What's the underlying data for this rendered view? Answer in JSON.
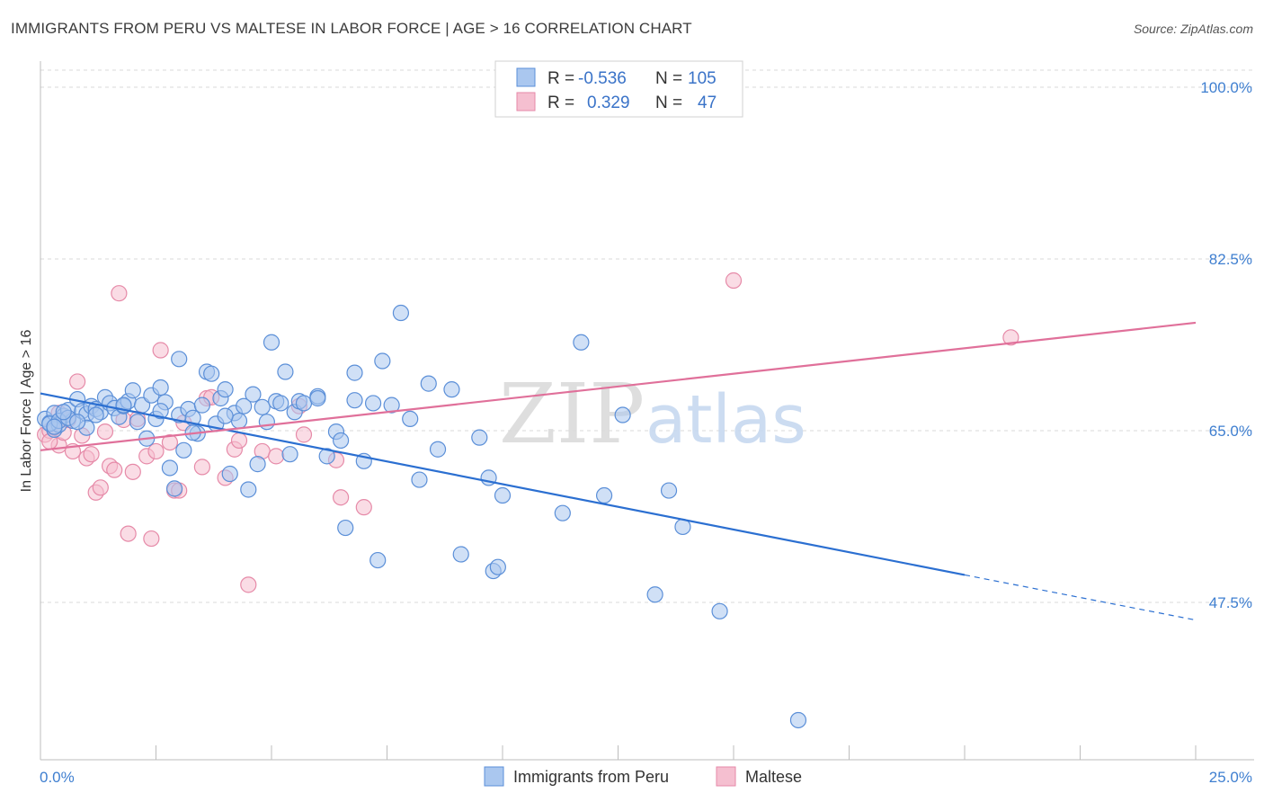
{
  "title": "IMMIGRANTS FROM PERU VS MALTESE IN LABOR FORCE | AGE > 16 CORRELATION CHART",
  "source": "Source: ZipAtlas.com",
  "colors": {
    "blue": "#5b8fd8",
    "blue_fill": "#aac7ef",
    "blue_line": "#2b6fd1",
    "pink": "#e68aa8",
    "pink_fill": "#f5bfd0",
    "pink_line": "#e0709a",
    "grid": "#d9d9d9",
    "tick_text": "#3f7fd0"
  },
  "legend": {
    "r_label": "R =",
    "n_label": "N =",
    "rows": [
      {
        "r": "-0.536",
        "n": "105"
      },
      {
        "r": "0.329",
        "n": "47"
      }
    ]
  },
  "watermark": {
    "zip": "ZIP",
    "atlas": "atlas"
  },
  "chart_data": {
    "type": "scatter",
    "xlabel": "",
    "ylabel": "In Labor Force | Age > 16",
    "xlim": [
      0,
      25
    ],
    "ylim": [
      36,
      101
    ],
    "x_tick_labels": [
      "0.0%",
      "25.0%"
    ],
    "y_ticks": [
      47.5,
      65.0,
      82.5,
      100.0
    ],
    "y_tick_labels": [
      "47.5%",
      "65.0%",
      "82.5%",
      "100.0%"
    ],
    "grid": true,
    "legend_position": "top-center",
    "series": [
      {
        "name": "Immigrants from Peru",
        "color": "#5b8fd8",
        "trend": {
          "x0": 0.0,
          "y0": 68.8,
          "x1": 20.0,
          "y1": 50.3,
          "dashed_to": 25.0,
          "dashed_y": 45.7
        },
        "points": [
          [
            0.1,
            66.2
          ],
          [
            0.2,
            65.8
          ],
          [
            0.3,
            65.1
          ],
          [
            0.3,
            66.8
          ],
          [
            0.4,
            65.6
          ],
          [
            0.5,
            66.5
          ],
          [
            0.6,
            67.1
          ],
          [
            0.7,
            66.0
          ],
          [
            0.8,
            68.2
          ],
          [
            0.9,
            67.0
          ],
          [
            1.0,
            66.7
          ],
          [
            1.0,
            65.3
          ],
          [
            1.1,
            67.5
          ],
          [
            1.2,
            67.2
          ],
          [
            1.3,
            66.9
          ],
          [
            1.4,
            68.4
          ],
          [
            1.5,
            67.8
          ],
          [
            1.6,
            67.3
          ],
          [
            1.7,
            66.4
          ],
          [
            1.8,
            67.5
          ],
          [
            1.9,
            68.0
          ],
          [
            2.0,
            69.1
          ],
          [
            2.1,
            65.9
          ],
          [
            2.2,
            67.6
          ],
          [
            2.3,
            64.2
          ],
          [
            2.4,
            68.6
          ],
          [
            2.5,
            66.2
          ],
          [
            2.6,
            69.4
          ],
          [
            2.7,
            67.9
          ],
          [
            2.8,
            61.2
          ],
          [
            2.9,
            59.1
          ],
          [
            3.0,
            66.6
          ],
          [
            3.0,
            72.3
          ],
          [
            3.1,
            63.0
          ],
          [
            3.2,
            67.2
          ],
          [
            3.3,
            66.3
          ],
          [
            3.4,
            64.7
          ],
          [
            3.5,
            67.6
          ],
          [
            3.6,
            71.0
          ],
          [
            3.7,
            70.8
          ],
          [
            3.8,
            65.7
          ],
          [
            3.9,
            68.3
          ],
          [
            4.0,
            69.2
          ],
          [
            4.1,
            60.6
          ],
          [
            4.2,
            66.8
          ],
          [
            4.3,
            66.0
          ],
          [
            4.4,
            67.5
          ],
          [
            4.5,
            59.0
          ],
          [
            4.6,
            68.7
          ],
          [
            4.7,
            61.6
          ],
          [
            4.8,
            67.4
          ],
          [
            4.9,
            65.9
          ],
          [
            5.0,
            74.0
          ],
          [
            5.1,
            68.0
          ],
          [
            5.2,
            67.8
          ],
          [
            5.3,
            71.0
          ],
          [
            5.4,
            62.6
          ],
          [
            5.5,
            66.9
          ],
          [
            5.6,
            68.0
          ],
          [
            5.7,
            67.8
          ],
          [
            6.0,
            68.5
          ],
          [
            6.0,
            68.3
          ],
          [
            6.2,
            62.4
          ],
          [
            6.4,
            64.9
          ],
          [
            6.5,
            64.0
          ],
          [
            6.6,
            55.1
          ],
          [
            6.8,
            68.1
          ],
          [
            6.8,
            70.9
          ],
          [
            7.0,
            61.9
          ],
          [
            7.2,
            67.8
          ],
          [
            7.3,
            51.8
          ],
          [
            7.4,
            72.1
          ],
          [
            7.6,
            67.6
          ],
          [
            7.8,
            77.0
          ],
          [
            8.0,
            66.2
          ],
          [
            8.2,
            60.0
          ],
          [
            8.4,
            69.8
          ],
          [
            8.6,
            63.1
          ],
          [
            8.9,
            69.2
          ],
          [
            9.1,
            52.4
          ],
          [
            9.5,
            64.3
          ],
          [
            9.7,
            60.2
          ],
          [
            9.8,
            50.7
          ],
          [
            9.9,
            51.1
          ],
          [
            10.0,
            58.4
          ],
          [
            11.3,
            56.6
          ],
          [
            11.7,
            74.0
          ],
          [
            12.2,
            58.4
          ],
          [
            12.6,
            66.6
          ],
          [
            13.3,
            48.3
          ],
          [
            13.6,
            58.9
          ],
          [
            13.9,
            55.2
          ],
          [
            14.7,
            46.6
          ],
          [
            16.4,
            35.5
          ],
          [
            0.2,
            65.7
          ],
          [
            0.4,
            66.0
          ],
          [
            0.6,
            66.3
          ],
          [
            0.8,
            65.9
          ],
          [
            1.2,
            66.6
          ],
          [
            1.8,
            67.6
          ],
          [
            2.6,
            67.0
          ],
          [
            3.3,
            64.8
          ],
          [
            4.0,
            66.5
          ],
          [
            0.3,
            65.4
          ],
          [
            0.5,
            66.9
          ]
        ]
      },
      {
        "name": "Maltese",
        "color": "#e68aa8",
        "trend": {
          "x0": 0.0,
          "y0": 63.0,
          "x1": 25.0,
          "y1": 76.0
        },
        "points": [
          [
            0.1,
            64.6
          ],
          [
            0.2,
            65.0
          ],
          [
            0.3,
            65.3
          ],
          [
            0.4,
            63.5
          ],
          [
            0.5,
            64.8
          ],
          [
            0.6,
            66.1
          ],
          [
            0.7,
            62.9
          ],
          [
            0.8,
            70.0
          ],
          [
            0.9,
            64.5
          ],
          [
            1.0,
            62.2
          ],
          [
            1.1,
            62.6
          ],
          [
            1.2,
            58.7
          ],
          [
            1.3,
            59.2
          ],
          [
            1.4,
            64.9
          ],
          [
            1.5,
            61.4
          ],
          [
            1.6,
            61.0
          ],
          [
            1.7,
            79.0
          ],
          [
            1.8,
            66.1
          ],
          [
            1.9,
            54.5
          ],
          [
            2.0,
            60.8
          ],
          [
            2.1,
            66.2
          ],
          [
            2.3,
            62.4
          ],
          [
            2.4,
            54.0
          ],
          [
            2.5,
            62.9
          ],
          [
            2.6,
            73.2
          ],
          [
            2.8,
            63.8
          ],
          [
            2.9,
            58.9
          ],
          [
            3.0,
            58.9
          ],
          [
            3.1,
            65.8
          ],
          [
            3.5,
            61.3
          ],
          [
            3.6,
            68.3
          ],
          [
            3.7,
            68.4
          ],
          [
            4.0,
            60.2
          ],
          [
            4.2,
            63.1
          ],
          [
            4.3,
            64.0
          ],
          [
            4.5,
            49.3
          ],
          [
            4.8,
            62.9
          ],
          [
            5.1,
            62.4
          ],
          [
            5.6,
            67.5
          ],
          [
            5.7,
            64.6
          ],
          [
            6.4,
            62.0
          ],
          [
            6.5,
            58.2
          ],
          [
            7.0,
            57.2
          ],
          [
            15.0,
            80.3
          ],
          [
            21.0,
            74.5
          ],
          [
            0.4,
            66.8
          ],
          [
            0.2,
            63.9
          ]
        ]
      }
    ]
  }
}
